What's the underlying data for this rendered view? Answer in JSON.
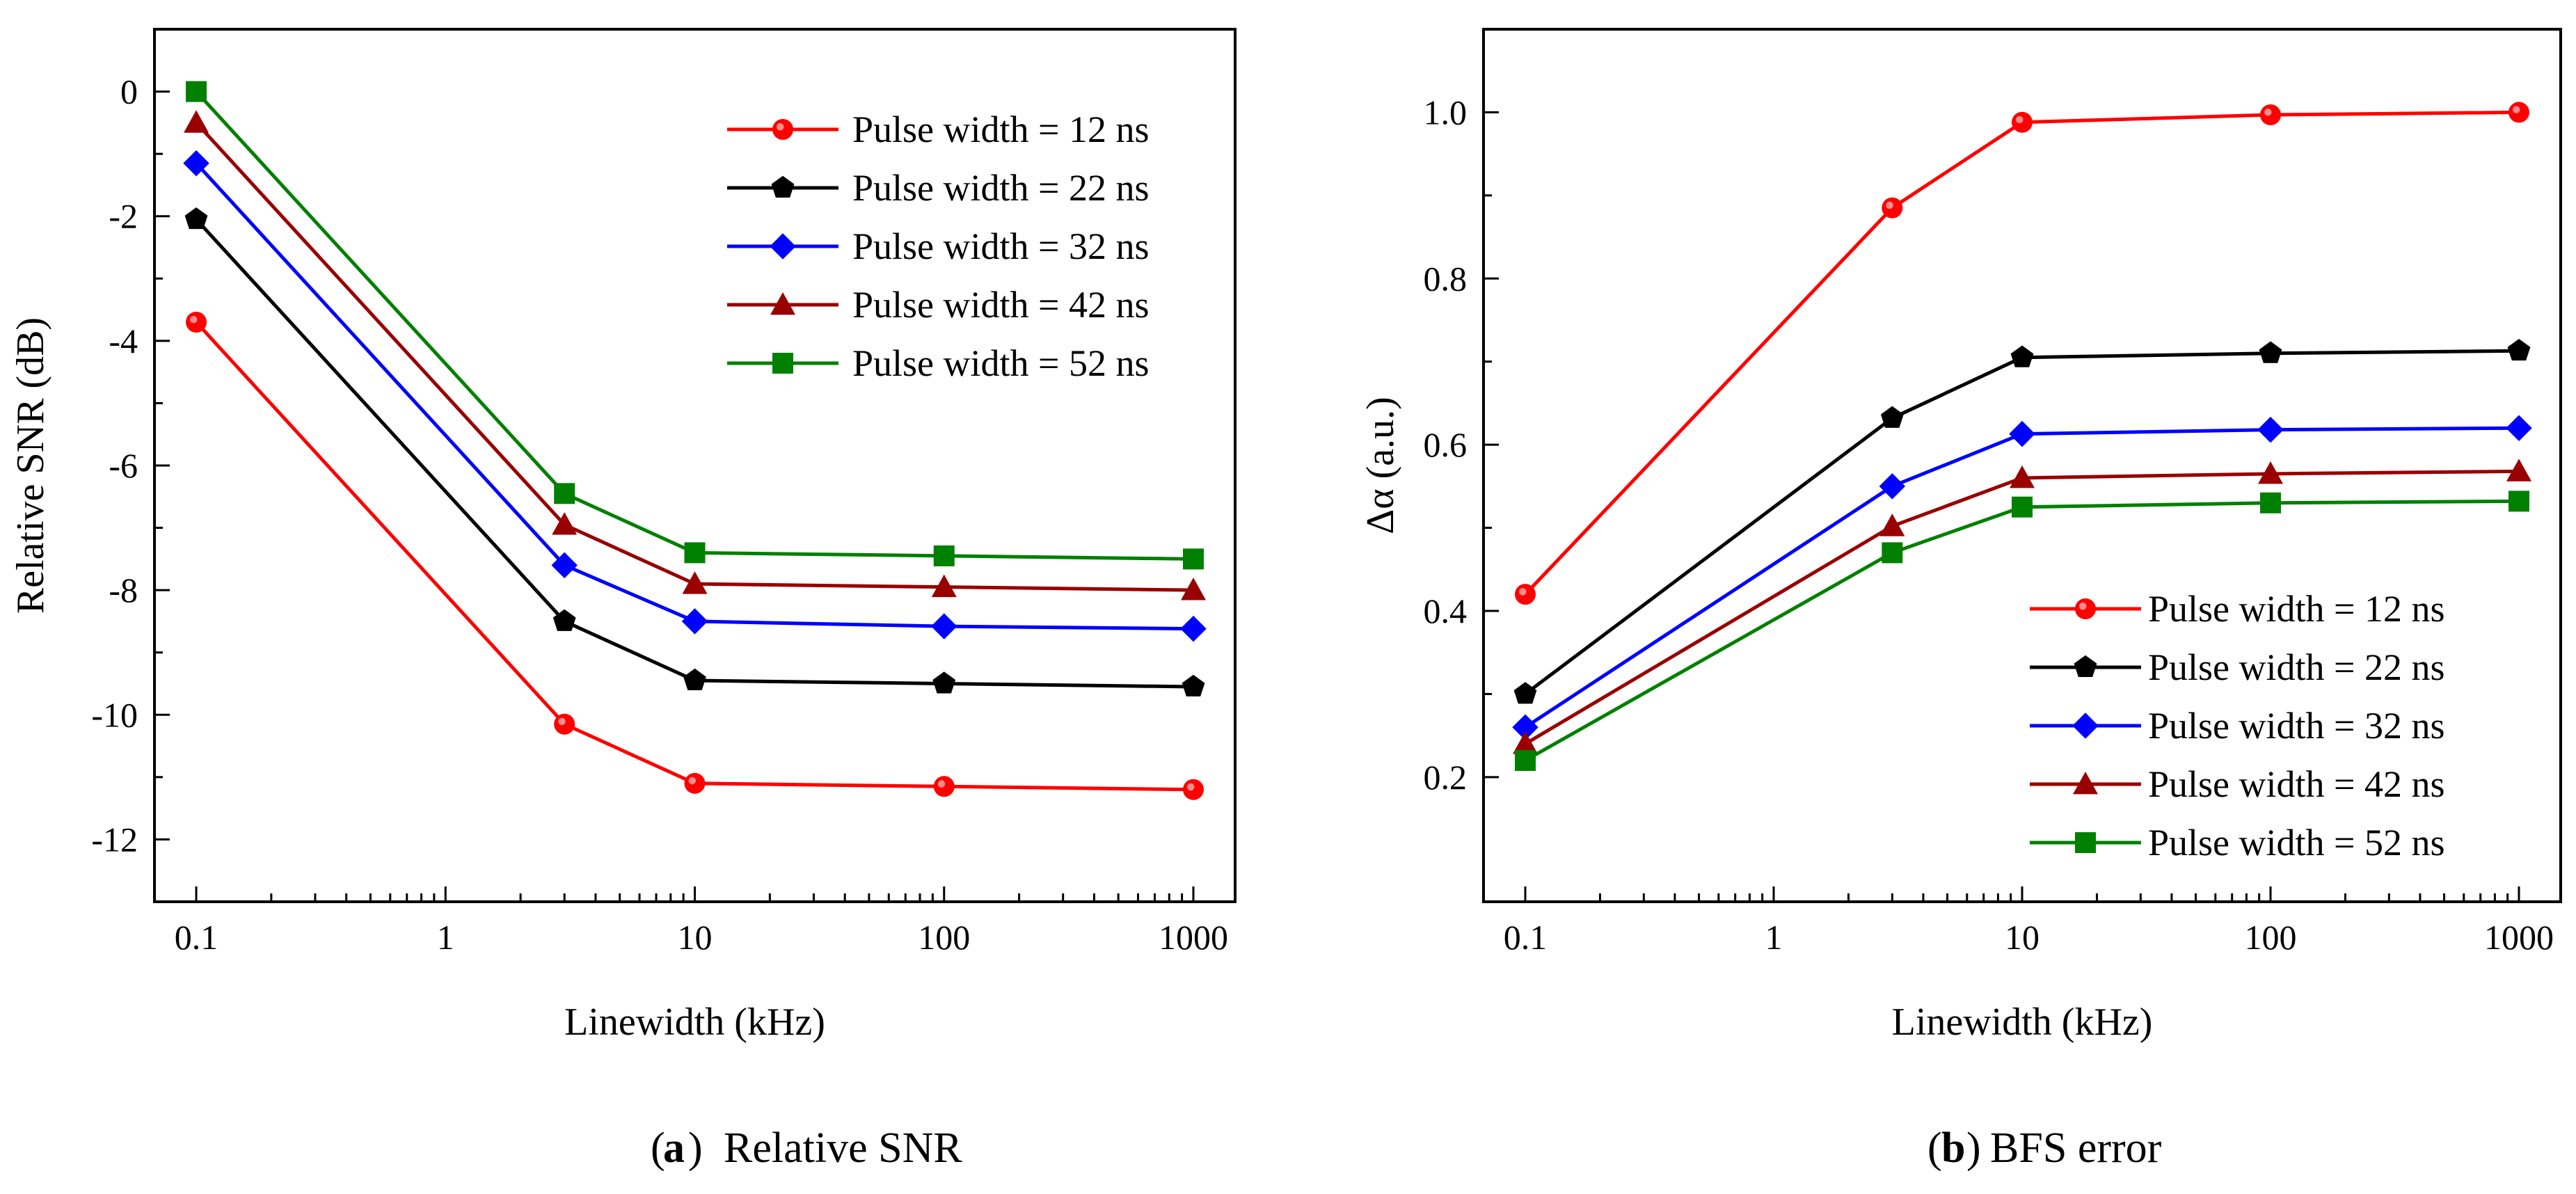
{
  "chart_data": [
    {
      "panel": "a",
      "type": "line",
      "xscale": "log",
      "x": [
        0.1,
        3,
        10,
        100,
        1000
      ],
      "xticks": [
        "0.1",
        "1",
        "10",
        "100",
        "1000"
      ],
      "yticks": [
        "0",
        "-2",
        "-4",
        "-6",
        "-8",
        "-10",
        "-12"
      ],
      "ylim": [
        -13,
        1
      ],
      "xlabel": "Linewidth (kHz)",
      "ylabel": "Relative SNR (dB)",
      "legend_position": "top-right",
      "caption": {
        "letter": "a",
        "open": "(",
        "close": ")",
        "text": "Relative SNR"
      },
      "series": [
        {
          "name": "Pulse width = 12 ns",
          "color": "#ff0000",
          "marker": "circle",
          "values": [
            -3.7,
            -10.15,
            -11.1,
            -11.15,
            -11.2
          ]
        },
        {
          "name": "Pulse width = 22 ns",
          "color": "#000000",
          "marker": "pentagon",
          "values": [
            -2.05,
            -8.5,
            -9.45,
            -9.5,
            -9.55
          ]
        },
        {
          "name": "Pulse width = 32 ns",
          "color": "#0000ff",
          "marker": "diamond",
          "values": [
            -1.15,
            -7.6,
            -8.5,
            -8.58,
            -8.62
          ]
        },
        {
          "name": "Pulse width = 42 ns",
          "color": "#990000",
          "marker": "triangle",
          "values": [
            -0.5,
            -6.95,
            -7.9,
            -7.95,
            -8.0
          ]
        },
        {
          "name": "Pulse width = 52 ns",
          "color": "#008000",
          "marker": "square",
          "values": [
            0.0,
            -6.45,
            -7.4,
            -7.45,
            -7.5
          ]
        }
      ]
    },
    {
      "panel": "b",
      "type": "line",
      "xscale": "log",
      "x": [
        0.1,
        3,
        10,
        100,
        1000
      ],
      "xticks": [
        "0.1",
        "1",
        "10",
        "100",
        "1000"
      ],
      "yticks": [
        "1.0",
        "0.8",
        "0.6",
        "0.4",
        "0.2"
      ],
      "ylim": [
        0.05,
        1.1
      ],
      "xlabel": "Linewidth (kHz)",
      "ylabel": "Δα (a.u.)",
      "legend_position": "bottom-right",
      "caption": {
        "letter": "b",
        "open": "(",
        "close": ")",
        "text": "BFS error"
      },
      "series": [
        {
          "name": "Pulse width = 12 ns",
          "color": "#ff0000",
          "marker": "circle",
          "values": [
            0.42,
            0.885,
            0.988,
            0.997,
            1.0
          ]
        },
        {
          "name": "Pulse width = 22 ns",
          "color": "#000000",
          "marker": "pentagon",
          "values": [
            0.3,
            0.632,
            0.705,
            0.71,
            0.713
          ]
        },
        {
          "name": "Pulse width = 32 ns",
          "color": "#0000ff",
          "marker": "diamond",
          "values": [
            0.26,
            0.55,
            0.613,
            0.618,
            0.62
          ]
        },
        {
          "name": "Pulse width = 42 ns",
          "color": "#990000",
          "marker": "triangle",
          "values": [
            0.24,
            0.502,
            0.56,
            0.565,
            0.568
          ]
        },
        {
          "name": "Pulse width = 52 ns",
          "color": "#008000",
          "marker": "square",
          "values": [
            0.22,
            0.47,
            0.525,
            0.53,
            0.532
          ]
        }
      ]
    }
  ]
}
